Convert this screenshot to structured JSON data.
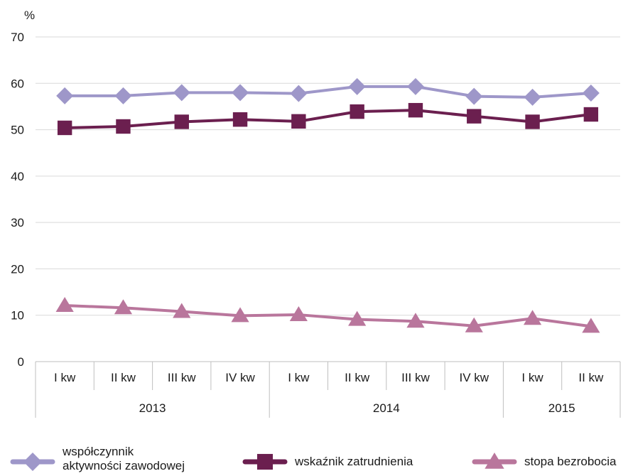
{
  "chart_data": {
    "type": "line",
    "title": "",
    "ylabel": "%",
    "xlabel": "",
    "ylim": [
      0,
      70
    ],
    "yticks": [
      0,
      10,
      20,
      30,
      40,
      50,
      60,
      70
    ],
    "grid": true,
    "legend_position": "bottom",
    "categories": [
      "I kw",
      "II kw",
      "III kw",
      "IV kw",
      "I kw",
      "II kw",
      "III kw",
      "IV kw",
      "I kw",
      "II kw"
    ],
    "groups": [
      {
        "label": "2013",
        "count": 4
      },
      {
        "label": "2014",
        "count": 4
      },
      {
        "label": "2015",
        "count": 2
      }
    ],
    "series": [
      {
        "name": "współczynnik aktywności zawodowej",
        "legend_lines": [
          "współczynnik",
          "aktywności zawodowej"
        ],
        "marker": "diamond",
        "color": "#9e97c9",
        "values": [
          57.3,
          57.3,
          58.0,
          58.0,
          57.8,
          59.3,
          59.3,
          57.2,
          57.0,
          57.9
        ]
      },
      {
        "name": "wskaźnik zatrudnienia",
        "legend_lines": [
          "wskaźnik zatrudnienia"
        ],
        "marker": "square",
        "color": "#6b1f4f",
        "values": [
          50.4,
          50.7,
          51.7,
          52.2,
          51.8,
          53.9,
          54.2,
          52.9,
          51.7,
          53.3
        ]
      },
      {
        "name": "stopa bezrobocia",
        "legend_lines": [
          "stopa bezrobocia"
        ],
        "marker": "triangle",
        "color": "#b9769c",
        "values": [
          12.1,
          11.6,
          10.8,
          9.9,
          10.1,
          9.1,
          8.7,
          7.7,
          9.3,
          7.6
        ]
      }
    ]
  }
}
